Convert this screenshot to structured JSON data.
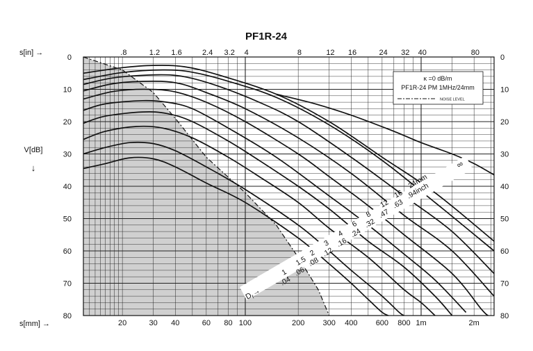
{
  "chart_data": {
    "type": "line",
    "title": "PF1R-24",
    "x_axis_bottom": {
      "label": "s[mm] →",
      "scale": "log",
      "range": [
        12,
        2600
      ],
      "tick_values": [
        20,
        30,
        40,
        60,
        80,
        100,
        200,
        300,
        400,
        600,
        800,
        1000,
        2000
      ],
      "tick_labels": [
        "20",
        "30",
        "40",
        "60",
        "80",
        "100",
        "200",
        "300",
        "400",
        "600",
        "800",
        "1m",
        "2m"
      ]
    },
    "x_axis_top": {
      "label": "s[in] →",
      "scale": "log",
      "tick_values": [
        0.8,
        1.2,
        1.6,
        2.4,
        3.2,
        4,
        8,
        12,
        16,
        24,
        32,
        40,
        80
      ],
      "tick_labels": [
        ".8",
        "1.2",
        "1.6",
        "2.4",
        "3.2",
        "4",
        "8",
        "12",
        "16",
        "24",
        "32",
        "40",
        "80"
      ]
    },
    "y_axis": {
      "label": "V[dB]",
      "arrow": "↓",
      "range": [
        0,
        80
      ],
      "inverted": true,
      "tick_values": [
        0,
        10,
        20,
        30,
        40,
        50,
        60,
        70,
        80
      ],
      "tick_labels": [
        "0",
        "10",
        "20",
        "30",
        "40",
        "50",
        "60",
        "70",
        "80"
      ]
    },
    "legend": {
      "placement": "top-right",
      "line1": "κ =0  dB/m",
      "line2": "PF1R-24  PM  1MHz/24mm",
      "noise_label": "NOISE LEVEL"
    },
    "reflector_label": "D",
    "reflector_subscript": "f",
    "reflector_arrow": "→",
    "mm_labels": [
      "1",
      "1.5",
      "2",
      "3",
      "4",
      "6",
      "8",
      "12",
      "16",
      "24mm"
    ],
    "inch_labels": [
      ".04",
      ".06",
      ".08",
      ".12",
      ".16",
      ".24",
      ".32",
      ".47",
      ".63",
      ".94inch"
    ],
    "infinity_label": "∞",
    "noise_level": [
      [
        12,
        0
      ],
      [
        20,
        4
      ],
      [
        30,
        11
      ],
      [
        40,
        19
      ],
      [
        60,
        31
      ],
      [
        100,
        42
      ],
      [
        150,
        52
      ],
      [
        200,
        62
      ],
      [
        260,
        72
      ],
      [
        300,
        80
      ]
    ],
    "series": [
      {
        "label_index": 0,
        "points": [
          [
            12,
            34.5
          ],
          [
            16,
            33
          ],
          [
            22,
            31.2
          ],
          [
            30,
            31.5
          ],
          [
            40,
            34
          ],
          [
            60,
            39
          ],
          [
            100,
            45
          ],
          [
            200,
            56
          ],
          [
            300,
            64
          ],
          [
            400,
            70
          ],
          [
            500,
            75
          ],
          [
            600,
            79
          ],
          [
            650,
            81
          ]
        ]
      },
      {
        "label_index": 1,
        "points": [
          [
            12,
            30
          ],
          [
            16,
            28
          ],
          [
            22,
            26.5
          ],
          [
            30,
            26.8
          ],
          [
            40,
            29
          ],
          [
            60,
            34
          ],
          [
            100,
            41
          ],
          [
            200,
            52
          ],
          [
            300,
            60
          ],
          [
            400,
            66
          ],
          [
            600,
            74
          ],
          [
            750,
            79
          ],
          [
            800,
            81
          ]
        ]
      },
      {
        "label_index": 2,
        "points": [
          [
            12,
            25.5
          ],
          [
            16,
            23
          ],
          [
            24,
            21.5
          ],
          [
            34,
            22
          ],
          [
            50,
            25
          ],
          [
            80,
            31
          ],
          [
            120,
            37
          ],
          [
            200,
            45
          ],
          [
            300,
            53
          ],
          [
            500,
            62
          ],
          [
            800,
            72
          ],
          [
            1000,
            76
          ],
          [
            1200,
            80
          ]
        ]
      },
      {
        "label_index": 3,
        "points": [
          [
            12,
            20.5
          ],
          [
            16,
            18.3
          ],
          [
            26,
            17
          ],
          [
            36,
            17.5
          ],
          [
            50,
            20
          ],
          [
            80,
            26
          ],
          [
            120,
            32
          ],
          [
            200,
            40
          ],
          [
            300,
            47
          ],
          [
            500,
            57
          ],
          [
            800,
            65
          ],
          [
            1200,
            74
          ],
          [
            1500,
            80
          ]
        ]
      },
      {
        "label_index": 4,
        "points": [
          [
            12,
            16.5
          ],
          [
            16,
            14.5
          ],
          [
            26,
            13.5
          ],
          [
            36,
            14
          ],
          [
            50,
            16
          ],
          [
            80,
            22
          ],
          [
            150,
            31
          ],
          [
            300,
            43
          ],
          [
            500,
            52
          ],
          [
            800,
            61
          ],
          [
            1200,
            69
          ],
          [
            1800,
            79
          ]
        ]
      },
      {
        "label_index": 5,
        "points": [
          [
            12,
            13
          ],
          [
            18,
            10.6
          ],
          [
            28,
            10
          ],
          [
            40,
            10.8
          ],
          [
            60,
            14
          ],
          [
            100,
            20
          ],
          [
            200,
            30
          ],
          [
            300,
            37
          ],
          [
            500,
            46
          ],
          [
            800,
            55
          ],
          [
            1500,
            67
          ],
          [
            2200,
            78
          ],
          [
            2400,
            80
          ]
        ]
      },
      {
        "label_index": 6,
        "points": [
          [
            12,
            10.5
          ],
          [
            18,
            8.2
          ],
          [
            30,
            7.5
          ],
          [
            42,
            8.2
          ],
          [
            60,
            11
          ],
          [
            100,
            16
          ],
          [
            200,
            25
          ],
          [
            400,
            36
          ],
          [
            800,
            49
          ],
          [
            1500,
            60
          ],
          [
            2600,
            74
          ]
        ]
      },
      {
        "label_index": 7,
        "points": [
          [
            12,
            8.5
          ],
          [
            18,
            6.4
          ],
          [
            32,
            5.5
          ],
          [
            46,
            6.2
          ],
          [
            70,
            9
          ],
          [
            120,
            14
          ],
          [
            200,
            20
          ],
          [
            400,
            31
          ],
          [
            800,
            43
          ],
          [
            1500,
            54
          ],
          [
            2600,
            67
          ]
        ]
      },
      {
        "label_index": 8,
        "points": [
          [
            12,
            7
          ],
          [
            20,
            4.8
          ],
          [
            34,
            4
          ],
          [
            50,
            4.7
          ],
          [
            80,
            7.5
          ],
          [
            150,
            12.5
          ],
          [
            300,
            21
          ],
          [
            600,
            32
          ],
          [
            1200,
            45
          ],
          [
            2600,
            60
          ]
        ]
      },
      {
        "label_index": 9,
        "points": [
          [
            12,
            5
          ],
          [
            20,
            3.3
          ],
          [
            30,
            2.6
          ],
          [
            45,
            3
          ],
          [
            70,
            5.5
          ],
          [
            150,
            11.5
          ],
          [
            300,
            20
          ],
          [
            600,
            31
          ],
          [
            1200,
            42
          ],
          [
            2600,
            57
          ]
        ]
      },
      {
        "label_index": 10,
        "points": [
          [
            150,
            11.5
          ],
          [
            250,
            14.5
          ],
          [
            400,
            18
          ],
          [
            700,
            23
          ],
          [
            1000,
            26.5
          ],
          [
            1500,
            30
          ],
          [
            2000,
            33
          ],
          [
            2600,
            36.5
          ]
        ]
      }
    ]
  }
}
